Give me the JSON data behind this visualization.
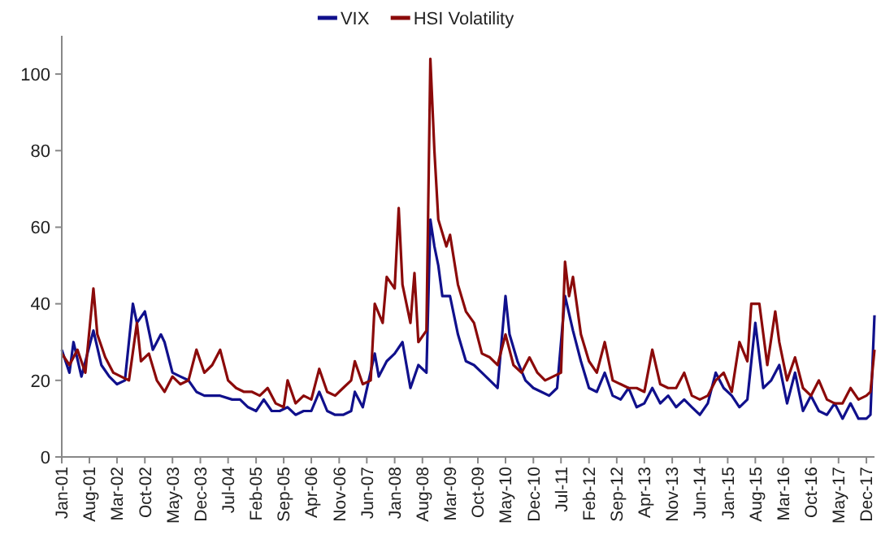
{
  "chart_data": {
    "type": "line",
    "legend": "top",
    "grid": false,
    "line_style": "solid",
    "xlim": [
      "2001-01",
      "2018-02"
    ],
    "ylim": [
      0,
      110
    ],
    "yticks": [
      0,
      20,
      40,
      60,
      80,
      100
    ],
    "xticks": [
      {
        "value": "2001-01",
        "label": "Jan-01"
      },
      {
        "value": "2001-08",
        "label": "Aug-01"
      },
      {
        "value": "2002-03",
        "label": "Mar-02"
      },
      {
        "value": "2002-10",
        "label": "Oct-02"
      },
      {
        "value": "2003-05",
        "label": "May-03"
      },
      {
        "value": "2003-12",
        "label": "Dec-03"
      },
      {
        "value": "2004-07",
        "label": "Jul-04"
      },
      {
        "value": "2005-02",
        "label": "Feb-05"
      },
      {
        "value": "2005-09",
        "label": "Sep-05"
      },
      {
        "value": "2006-04",
        "label": "Apr-06"
      },
      {
        "value": "2006-11",
        "label": "Nov-06"
      },
      {
        "value": "2007-06",
        "label": "Jun-07"
      },
      {
        "value": "2008-01",
        "label": "Jan-08"
      },
      {
        "value": "2008-08",
        "label": "Aug-08"
      },
      {
        "value": "2009-03",
        "label": "Mar-09"
      },
      {
        "value": "2009-10",
        "label": "Oct-09"
      },
      {
        "value": "2010-05",
        "label": "May-10"
      },
      {
        "value": "2010-12",
        "label": "Dec-10"
      },
      {
        "value": "2011-07",
        "label": "Jul-11"
      },
      {
        "value": "2012-02",
        "label": "Feb-12"
      },
      {
        "value": "2012-09",
        "label": "Sep-12"
      },
      {
        "value": "2013-04",
        "label": "Apr-13"
      },
      {
        "value": "2013-11",
        "label": "Nov-13"
      },
      {
        "value": "2014-06",
        "label": "Jun-14"
      },
      {
        "value": "2015-01",
        "label": "Jan-15"
      },
      {
        "value": "2015-08",
        "label": "Aug-15"
      },
      {
        "value": "2016-03",
        "label": "Mar-16"
      },
      {
        "value": "2016-10",
        "label": "Oct-16"
      },
      {
        "value": "2017-05",
        "label": "May-17"
      },
      {
        "value": "2017-12",
        "label": "Dec-17"
      }
    ],
    "series": [
      {
        "name": "VIX",
        "color": "#10108c",
        "x": [
          "2001-01",
          "2001-03",
          "2001-04",
          "2001-06",
          "2001-09",
          "2001-11",
          "2002-01",
          "2002-03",
          "2002-05",
          "2002-07",
          "2002-08",
          "2002-10",
          "2002-12",
          "2003-02",
          "2003-03",
          "2003-05",
          "2003-07",
          "2003-09",
          "2003-11",
          "2004-01",
          "2004-03",
          "2004-05",
          "2004-08",
          "2004-10",
          "2004-12",
          "2005-02",
          "2005-04",
          "2005-06",
          "2005-08",
          "2005-10",
          "2005-12",
          "2006-02",
          "2006-04",
          "2006-06",
          "2006-08",
          "2006-10",
          "2006-12",
          "2007-02",
          "2007-03",
          "2007-05",
          "2007-08",
          "2007-09",
          "2007-11",
          "2008-01",
          "2008-03",
          "2008-05",
          "2008-07",
          "2008-09",
          "2008-10",
          "2008-11",
          "2008-12",
          "2009-01",
          "2009-03",
          "2009-05",
          "2009-07",
          "2009-09",
          "2009-11",
          "2010-01",
          "2010-03",
          "2010-05",
          "2010-06",
          "2010-08",
          "2010-10",
          "2010-12",
          "2011-02",
          "2011-04",
          "2011-06",
          "2011-08",
          "2011-10",
          "2011-12",
          "2012-02",
          "2012-04",
          "2012-06",
          "2012-08",
          "2012-10",
          "2012-12",
          "2013-02",
          "2013-04",
          "2013-06",
          "2013-08",
          "2013-10",
          "2013-12",
          "2014-02",
          "2014-04",
          "2014-06",
          "2014-08",
          "2014-10",
          "2014-12",
          "2015-02",
          "2015-04",
          "2015-06",
          "2015-08",
          "2015-10",
          "2015-12",
          "2016-02",
          "2016-04",
          "2016-06",
          "2016-08",
          "2016-10",
          "2016-12",
          "2017-02",
          "2017-04",
          "2017-06",
          "2017-08",
          "2017-10",
          "2017-12",
          "2018-01",
          "2018-02"
        ],
        "values": [
          28,
          22,
          30,
          21,
          33,
          24,
          21,
          19,
          20,
          40,
          35,
          38,
          28,
          32,
          30,
          22,
          21,
          20,
          17,
          16,
          16,
          16,
          15,
          15,
          13,
          12,
          15,
          12,
          12,
          13,
          11,
          12,
          12,
          17,
          12,
          11,
          11,
          12,
          17,
          13,
          27,
          21,
          25,
          27,
          30,
          18,
          24,
          22,
          62,
          55,
          50,
          42,
          42,
          32,
          25,
          24,
          22,
          20,
          18,
          42,
          32,
          25,
          20,
          18,
          17,
          16,
          18,
          42,
          33,
          25,
          18,
          17,
          22,
          16,
          15,
          18,
          13,
          14,
          18,
          14,
          16,
          13,
          15,
          13,
          11,
          14,
          22,
          18,
          16,
          13,
          15,
          35,
          18,
          20,
          24,
          14,
          22,
          12,
          16,
          12,
          11,
          14,
          10,
          14,
          10,
          10,
          11,
          37
        ]
      },
      {
        "name": "HSI Volatility",
        "color": "#8b0a0a",
        "x": [
          "2001-01",
          "2001-03",
          "2001-05",
          "2001-07",
          "2001-09",
          "2001-10",
          "2001-12",
          "2002-02",
          "2002-04",
          "2002-06",
          "2002-08",
          "2002-09",
          "2002-11",
          "2003-01",
          "2003-03",
          "2003-05",
          "2003-07",
          "2003-09",
          "2003-11",
          "2004-01",
          "2004-03",
          "2004-05",
          "2004-07",
          "2004-09",
          "2004-11",
          "2005-01",
          "2005-03",
          "2005-05",
          "2005-07",
          "2005-09",
          "2005-10",
          "2005-12",
          "2006-02",
          "2006-04",
          "2006-06",
          "2006-08",
          "2006-10",
          "2006-12",
          "2007-02",
          "2007-03",
          "2007-05",
          "2007-07",
          "2007-08",
          "2007-10",
          "2007-11",
          "2008-01",
          "2008-02",
          "2008-03",
          "2008-05",
          "2008-06",
          "2008-07",
          "2008-09",
          "2008-10",
          "2008-11",
          "2008-12",
          "2009-02",
          "2009-03",
          "2009-05",
          "2009-07",
          "2009-09",
          "2009-11",
          "2010-01",
          "2010-03",
          "2010-05",
          "2010-07",
          "2010-09",
          "2010-11",
          "2011-01",
          "2011-03",
          "2011-05",
          "2011-07",
          "2011-08",
          "2011-09",
          "2011-10",
          "2011-12",
          "2012-02",
          "2012-04",
          "2012-06",
          "2012-08",
          "2012-10",
          "2012-12",
          "2013-02",
          "2013-04",
          "2013-06",
          "2013-08",
          "2013-10",
          "2013-12",
          "2014-02",
          "2014-04",
          "2014-06",
          "2014-08",
          "2014-10",
          "2014-12",
          "2015-02",
          "2015-04",
          "2015-06",
          "2015-07",
          "2015-09",
          "2015-11",
          "2016-01",
          "2016-02",
          "2016-04",
          "2016-06",
          "2016-08",
          "2016-10",
          "2016-12",
          "2017-02",
          "2017-04",
          "2017-06",
          "2017-08",
          "2017-10",
          "2017-12",
          "2018-01",
          "2018-02"
        ],
        "values": [
          27,
          24,
          28,
          22,
          44,
          32,
          26,
          22,
          21,
          20,
          35,
          25,
          27,
          20,
          17,
          21,
          19,
          20,
          28,
          22,
          24,
          28,
          20,
          18,
          17,
          17,
          16,
          18,
          14,
          13,
          20,
          14,
          16,
          15,
          23,
          17,
          16,
          18,
          20,
          25,
          19,
          20,
          40,
          35,
          47,
          44,
          65,
          45,
          35,
          48,
          30,
          33,
          104,
          80,
          62,
          55,
          58,
          45,
          38,
          35,
          27,
          26,
          24,
          32,
          24,
          22,
          26,
          22,
          20,
          21,
          22,
          51,
          42,
          47,
          32,
          25,
          22,
          30,
          20,
          19,
          18,
          18,
          17,
          28,
          19,
          18,
          18,
          22,
          16,
          15,
          16,
          20,
          22,
          17,
          30,
          25,
          40,
          40,
          24,
          38,
          30,
          20,
          26,
          18,
          16,
          20,
          15,
          14,
          14,
          18,
          15,
          16,
          17,
          28
        ]
      }
    ]
  }
}
